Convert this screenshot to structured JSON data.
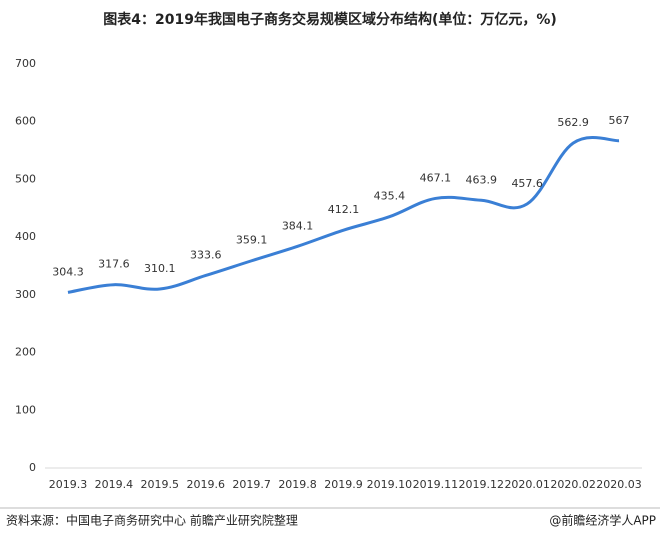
{
  "chart_data": {
    "type": "line",
    "title": "图表4：2019年我国电子商务交易规模区域分布结构(单位：万亿元，%)",
    "categories": [
      "2019.3",
      "2019.4",
      "2019.5",
      "2019.6",
      "2019.7",
      "2019.8",
      "2019.9",
      "2019.10",
      "2019.11",
      "2019.12",
      "2020.01",
      "2020.02",
      "2020.03"
    ],
    "values": [
      304.3,
      317.6,
      310.1,
      333.6,
      359.1,
      384.1,
      412.1,
      435.4,
      467.1,
      463.9,
      457.6,
      562.9,
      567
    ],
    "color": "#3a7fd5",
    "ylim": [
      0,
      700
    ],
    "yticks": [
      0,
      100,
      200,
      300,
      400,
      500,
      600,
      700
    ],
    "grid": false,
    "source": "资料来源：中国电子商务研究中心 前瞻产业研究院整理",
    "credit": "@前瞻经济学人APP"
  }
}
